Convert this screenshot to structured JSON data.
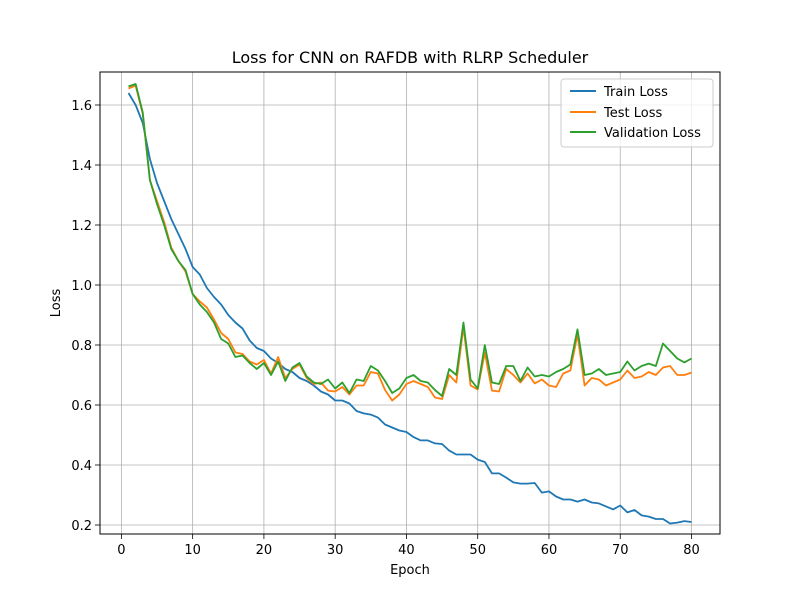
{
  "chart_data": {
    "type": "line",
    "title": "Loss for CNN on RAFDB with RLRP Scheduler",
    "xlabel": "Epoch",
    "ylabel": "Loss",
    "xlim": [
      -3,
      84
    ],
    "ylim": [
      0.17,
      1.71
    ],
    "xticks": [
      0,
      10,
      20,
      30,
      40,
      50,
      60,
      70,
      80
    ],
    "yticks": [
      0.2,
      0.4,
      0.6,
      0.8,
      1.0,
      1.2,
      1.4,
      1.6
    ],
    "ytick_labels": [
      "0.2",
      "0.4",
      "0.6",
      "0.8",
      "1.0",
      "1.2",
      "1.4",
      "1.6"
    ],
    "grid": true,
    "legend_position": "top-right",
    "x": [
      1,
      2,
      3,
      4,
      5,
      6,
      7,
      8,
      9,
      10,
      11,
      12,
      13,
      14,
      15,
      16,
      17,
      18,
      19,
      20,
      21,
      22,
      23,
      24,
      25,
      26,
      27,
      28,
      29,
      30,
      31,
      32,
      33,
      34,
      35,
      36,
      37,
      38,
      39,
      40,
      41,
      42,
      43,
      44,
      45,
      46,
      47,
      48,
      49,
      50,
      51,
      52,
      53,
      54,
      55,
      56,
      57,
      58,
      59,
      60,
      61,
      62,
      63,
      64,
      65,
      66,
      67,
      68,
      69,
      70,
      71,
      72,
      73,
      74,
      75,
      76,
      77,
      78,
      79,
      80
    ],
    "series": [
      {
        "name": "Train Loss",
        "color": "#1f77b4",
        "values": [
          1.64,
          1.6,
          1.54,
          1.42,
          1.34,
          1.28,
          1.22,
          1.17,
          1.12,
          1.06,
          1.035,
          0.99,
          0.96,
          0.935,
          0.9,
          0.875,
          0.855,
          0.815,
          0.79,
          0.78,
          0.755,
          0.74,
          0.72,
          0.71,
          0.69,
          0.68,
          0.665,
          0.645,
          0.635,
          0.615,
          0.615,
          0.605,
          0.58,
          0.572,
          0.568,
          0.558,
          0.535,
          0.525,
          0.515,
          0.51,
          0.493,
          0.482,
          0.482,
          0.472,
          0.47,
          0.448,
          0.435,
          0.435,
          0.435,
          0.418,
          0.41,
          0.372,
          0.372,
          0.358,
          0.342,
          0.338,
          0.338,
          0.34,
          0.308,
          0.312,
          0.295,
          0.285,
          0.285,
          0.278,
          0.285,
          0.275,
          0.272,
          0.262,
          0.252,
          0.265,
          0.242,
          0.25,
          0.232,
          0.228,
          0.22,
          0.22,
          0.205,
          0.208,
          0.213,
          0.21
        ]
      },
      {
        "name": "Test Loss",
        "color": "#ff7f0e",
        "values": [
          1.655,
          1.665,
          1.57,
          1.35,
          1.28,
          1.21,
          1.125,
          1.08,
          1.045,
          0.97,
          0.945,
          0.925,
          0.885,
          0.84,
          0.82,
          0.775,
          0.77,
          0.745,
          0.735,
          0.75,
          0.705,
          0.76,
          0.69,
          0.72,
          0.735,
          0.69,
          0.67,
          0.675,
          0.648,
          0.645,
          0.66,
          0.635,
          0.665,
          0.665,
          0.71,
          0.705,
          0.65,
          0.615,
          0.635,
          0.67,
          0.68,
          0.67,
          0.66,
          0.625,
          0.62,
          0.7,
          0.675,
          0.86,
          0.665,
          0.652,
          0.775,
          0.648,
          0.645,
          0.72,
          0.7,
          0.675,
          0.705,
          0.672,
          0.685,
          0.665,
          0.66,
          0.705,
          0.715,
          0.835,
          0.665,
          0.69,
          0.685,
          0.665,
          0.675,
          0.685,
          0.715,
          0.69,
          0.695,
          0.71,
          0.7,
          0.725,
          0.73,
          0.7,
          0.7,
          0.708
        ]
      },
      {
        "name": "Validation Loss",
        "color": "#2ca02c",
        "values": [
          1.662,
          1.67,
          1.575,
          1.35,
          1.27,
          1.2,
          1.12,
          1.08,
          1.05,
          0.97,
          0.935,
          0.91,
          0.875,
          0.82,
          0.805,
          0.76,
          0.765,
          0.74,
          0.72,
          0.74,
          0.7,
          0.745,
          0.68,
          0.725,
          0.74,
          0.695,
          0.675,
          0.67,
          0.685,
          0.655,
          0.675,
          0.64,
          0.685,
          0.68,
          0.73,
          0.715,
          0.68,
          0.64,
          0.655,
          0.69,
          0.7,
          0.68,
          0.675,
          0.65,
          0.63,
          0.72,
          0.7,
          0.875,
          0.685,
          0.655,
          0.8,
          0.675,
          0.67,
          0.73,
          0.73,
          0.68,
          0.725,
          0.695,
          0.7,
          0.695,
          0.71,
          0.72,
          0.735,
          0.852,
          0.7,
          0.705,
          0.72,
          0.7,
          0.705,
          0.71,
          0.745,
          0.715,
          0.73,
          0.738,
          0.73,
          0.805,
          0.78,
          0.755,
          0.742,
          0.755
        ]
      }
    ]
  }
}
